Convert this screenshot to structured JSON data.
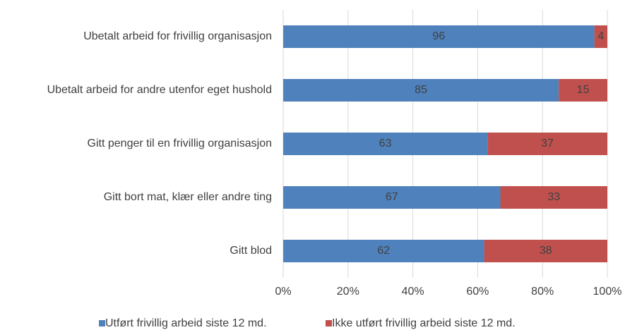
{
  "chart_data": {
    "type": "bar",
    "orientation": "horizontal",
    "stacked": true,
    "categories": [
      "Ubetalt arbeid for frivillig organisasjon",
      "Ubetalt arbeid for andre utenfor eget hushold",
      "Gitt penger til en frivillig organisasjon",
      "Gitt bort mat, klær eller andre ting",
      "Gitt blod"
    ],
    "series": [
      {
        "name": "Utført frivillig arbeid siste 12 md.",
        "color": "#4f81bd",
        "values": [
          96,
          85,
          63,
          67,
          62
        ]
      },
      {
        "name": "Ikke utført frivillig arbeid siste 12 md.",
        "color": "#c0504d",
        "values": [
          4,
          15,
          37,
          33,
          38
        ]
      }
    ],
    "xlim": [
      0,
      100
    ],
    "xticks": [
      {
        "value": 0,
        "label": "0%"
      },
      {
        "value": 20,
        "label": "20%"
      },
      {
        "value": 40,
        "label": "40%"
      },
      {
        "value": 60,
        "label": "60%"
      },
      {
        "value": 80,
        "label": "80%"
      },
      {
        "value": 100,
        "label": "100%"
      }
    ],
    "grid": true,
    "legend": "bottom"
  }
}
